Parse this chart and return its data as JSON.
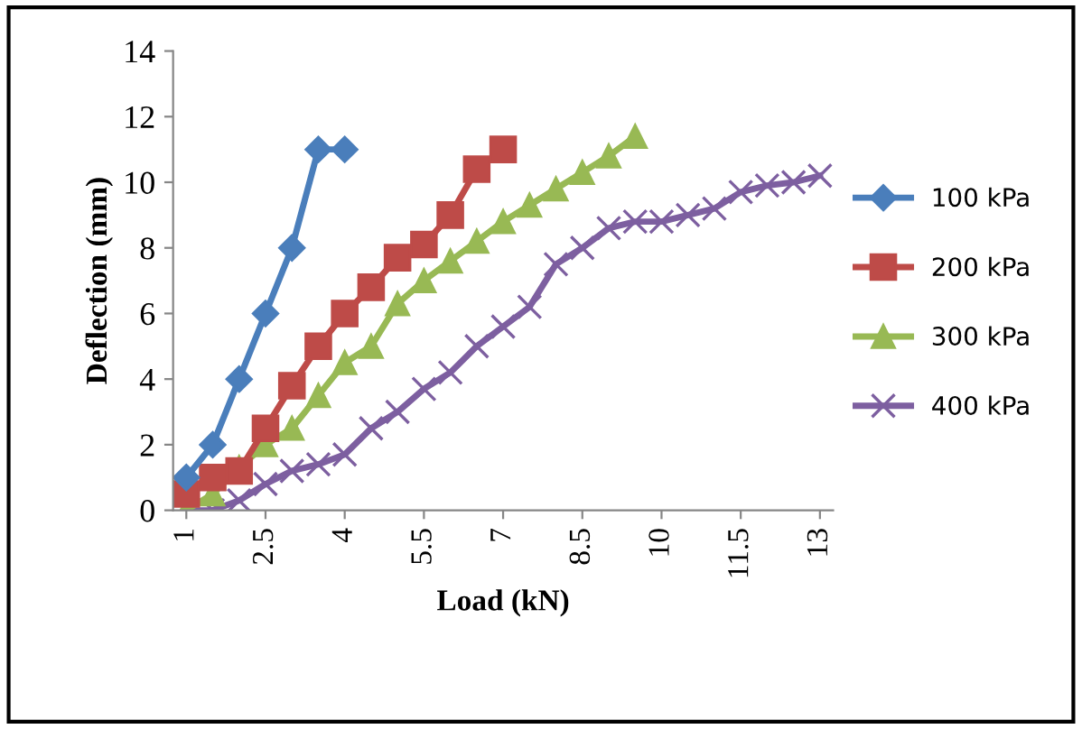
{
  "chart_data": {
    "type": "line",
    "xlabel": "Load (kN)",
    "ylabel": "Deflection (mm)",
    "xlim": [
      0.75,
      13.25
    ],
    "xticks": [
      1,
      2.5,
      4,
      5.5,
      7,
      8.5,
      10,
      11.5,
      13
    ],
    "ylim": [
      0,
      14
    ],
    "yticks": [
      0,
      2,
      4,
      6,
      8,
      10,
      12,
      14
    ],
    "grid": false,
    "legend": "right",
    "line_style": "solid",
    "series": [
      {
        "name": "100 kPa",
        "color": "#4a7ebb",
        "marker": "diamond",
        "x": [
          1,
          1.5,
          2,
          2.5,
          3,
          3.5,
          4
        ],
        "values": [
          1,
          2,
          4,
          6,
          8,
          11,
          11
        ]
      },
      {
        "name": "200 kPa",
        "color": "#be4b48",
        "marker": "square",
        "x": [
          1,
          1.5,
          2,
          2.5,
          3,
          3.5,
          4,
          4.5,
          5,
          5.5,
          6,
          6.5,
          7
        ],
        "values": [
          0.5,
          1,
          1.2,
          2.5,
          3.8,
          5,
          6,
          6.8,
          7.7,
          8.1,
          9,
          10.4,
          11
        ]
      },
      {
        "name": "300 kPa",
        "color": "#98b954",
        "marker": "triangle",
        "x": [
          1,
          1.5,
          2,
          2.5,
          3,
          3.5,
          4,
          4.5,
          5,
          5.5,
          6,
          6.5,
          7,
          7.5,
          8,
          8.5,
          9,
          9.5
        ],
        "values": [
          0,
          0.5,
          1.3,
          2,
          2.5,
          3.5,
          4.5,
          5,
          6.3,
          7,
          7.6,
          8.2,
          8.8,
          9.3,
          9.8,
          10.3,
          10.8,
          11.4
        ]
      },
      {
        "name": "400 kPa",
        "color": "#7d5fa0",
        "marker": "cross",
        "x": [
          1,
          1.5,
          2,
          2.5,
          3,
          3.5,
          4,
          4.5,
          5,
          5.5,
          6,
          6.5,
          7,
          7.5,
          8,
          8.5,
          9,
          9.5,
          10,
          10.5,
          11,
          11.5,
          12,
          12.5,
          13
        ],
        "values": [
          0,
          0,
          0.3,
          0.8,
          1.2,
          1.4,
          1.7,
          2.5,
          3,
          3.7,
          4.2,
          5,
          5.6,
          6.2,
          7.5,
          8,
          8.6,
          8.8,
          8.8,
          9,
          9.2,
          9.7,
          9.9,
          10,
          10.2
        ]
      }
    ]
  }
}
